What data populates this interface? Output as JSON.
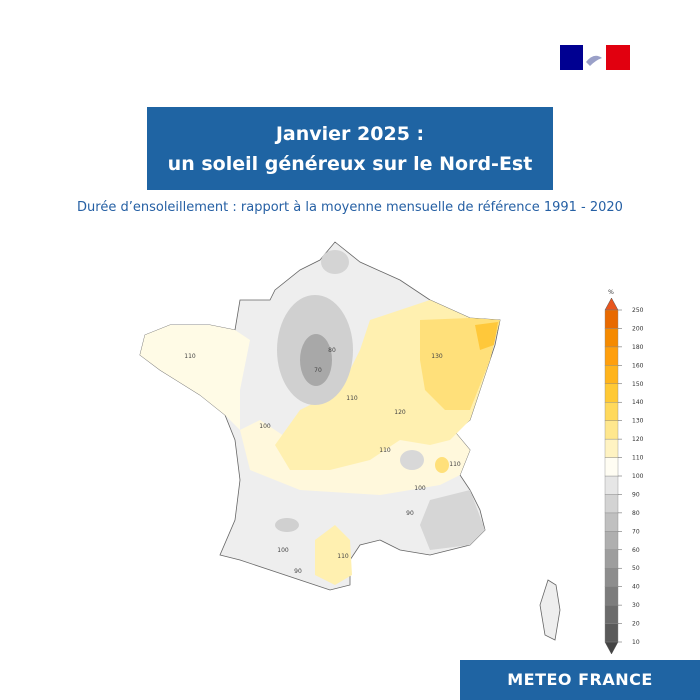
{
  "header": {
    "title_line1": "Janvier 2025 :",
    "title_line2": "un soleil généreux sur le Nord-Est",
    "subtitle": "Durée d’ensoleillement : rapport à la moyenne mensuelle de référence 1991 - 2020"
  },
  "colorbar": {
    "unit": "%",
    "ticks": [
      10,
      20,
      30,
      40,
      50,
      60,
      70,
      80,
      90,
      100,
      110,
      120,
      130,
      140,
      150,
      160,
      180,
      200,
      250
    ],
    "colors": [
      "#5a5a5a",
      "#6b6b6b",
      "#7c7c7c",
      "#8d8d8d",
      "#9e9e9e",
      "#afafaf",
      "#c0c0c0",
      "#d3d3d3",
      "#e6e6e6",
      "#fffdf3",
      "#fff3c2",
      "#ffe78d",
      "#ffd95c",
      "#ffc935",
      "#ffb41c",
      "#ff9f0d",
      "#f58a00",
      "#e86a00"
    ]
  },
  "contour_labels": [
    110,
    100,
    120,
    130,
    110,
    110,
    100,
    90,
    110,
    110,
    100,
    90,
    80,
    70
  ],
  "footer": {
    "brand": "METEO FRANCE"
  }
}
